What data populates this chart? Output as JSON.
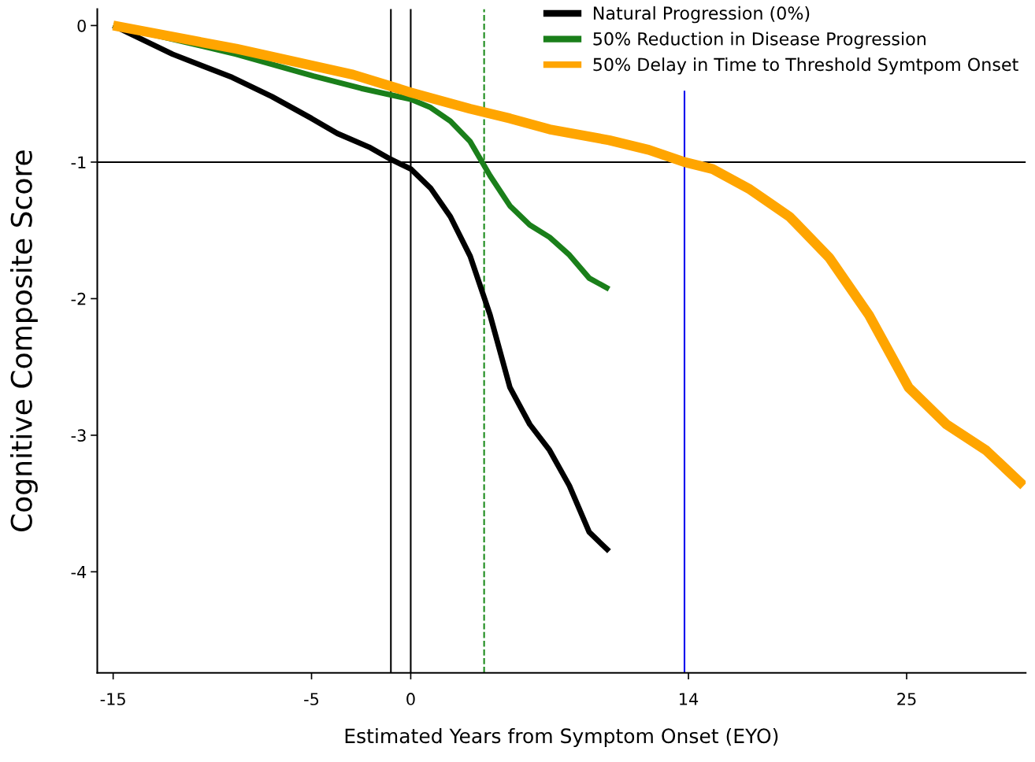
{
  "chart_data": {
    "type": "line",
    "xlabel": "Estimated Years from Symptom Onset (EYO)",
    "ylabel": "Cognitive Composite Score",
    "xlim": [
      -15.8,
      31
    ],
    "ylim": [
      -4.74,
      0.12
    ],
    "xticks": [
      -15,
      -5,
      0,
      14,
      25
    ],
    "yticks": [
      0,
      -1,
      -2,
      -3,
      -4
    ],
    "grid": false,
    "legend": "top right",
    "marker": "none",
    "line_style": "solid",
    "series": [
      {
        "name": "Natural Progression (0%)",
        "color": "#000000",
        "x": [
          -15,
          -12,
          -9,
          -7,
          -5,
          -3.7,
          -2.1,
          -1,
          0,
          1,
          2,
          3,
          4,
          5,
          6,
          7,
          8,
          9,
          10
        ],
        "values": [
          0,
          -0.21,
          -0.38,
          -0.52,
          -0.68,
          -0.79,
          -0.89,
          -0.98,
          -1.05,
          -1.19,
          -1.4,
          -1.69,
          -2.12,
          -2.65,
          -2.92,
          -3.11,
          -3.37,
          -3.71,
          -3.85
        ]
      },
      {
        "name": "50% Reduction in Disease Progression",
        "color": "#1a7f1a",
        "x": [
          -15,
          -12,
          -8.8,
          -4.9,
          -2.5,
          0,
          1,
          2,
          3,
          4,
          5,
          6,
          7,
          8,
          9,
          10
        ],
        "values": [
          0,
          -0.1,
          -0.21,
          -0.37,
          -0.46,
          -0.54,
          -0.6,
          -0.7,
          -0.85,
          -1.1,
          -1.32,
          -1.46,
          -1.55,
          -1.68,
          -1.85,
          -1.93
        ]
      },
      {
        "name": "50% Delay in Time to Threshold Symtpom Onset",
        "color": "#ffa500",
        "x": [
          -15,
          -8.8,
          -2.9,
          0,
          3,
          5,
          7,
          10,
          12,
          13.8,
          15.2,
          17.1,
          19.1,
          21.1,
          23.1,
          25.1,
          27,
          29,
          30.9
        ],
        "values": [
          0,
          -0.17,
          -0.36,
          -0.49,
          -0.61,
          -0.68,
          -0.76,
          -0.84,
          -0.91,
          -1.0,
          -1.05,
          -1.2,
          -1.4,
          -1.7,
          -2.12,
          -2.65,
          -2.92,
          -3.11,
          -3.37
        ]
      }
    ],
    "ref_lines": [
      {
        "axis": "y",
        "value": -1,
        "color": "#000000",
        "line_style": "solid"
      },
      {
        "axis": "x",
        "value": -1,
        "color": "#000000",
        "line_style": "solid"
      },
      {
        "axis": "x",
        "value": 0,
        "color": "#000000",
        "line_style": "solid"
      },
      {
        "axis": "x",
        "value": 3.7,
        "color": "#1a8a1a",
        "line_style": "dashed"
      },
      {
        "axis": "x",
        "value": 13.8,
        "color": "#0000ee",
        "line_style": "solid"
      }
    ]
  }
}
